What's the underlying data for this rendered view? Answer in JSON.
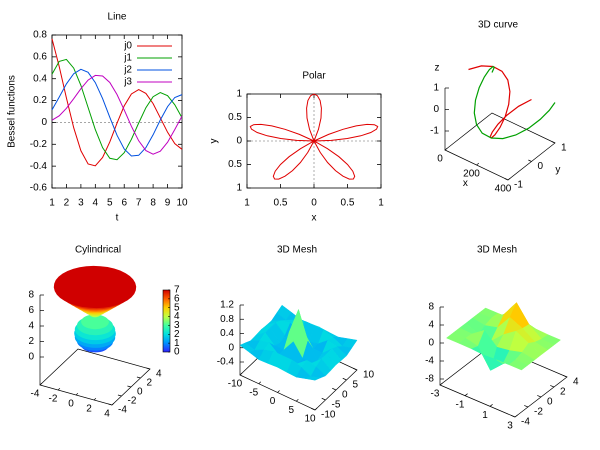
{
  "chart_data": [
    {
      "type": "line",
      "title": "Line",
      "xlabel": "t",
      "ylabel": "Bessel functions",
      "x": [
        1,
        1.5,
        2,
        2.5,
        3,
        3.5,
        4,
        4.5,
        5,
        5.5,
        6,
        6.5,
        7,
        7.5,
        8,
        8.5,
        9,
        9.5,
        10
      ],
      "series": [
        {
          "name": "j0",
          "color": "#e00000",
          "values": [
            0.765,
            0.512,
            0.224,
            -0.048,
            -0.26,
            -0.38,
            -0.397,
            -0.321,
            -0.178,
            -0.007,
            0.151,
            0.26,
            0.3,
            0.266,
            0.172,
            0.042,
            -0.09,
            -0.194,
            -0.246
          ]
        },
        {
          "name": "j1",
          "color": "#00a000",
          "values": [
            0.44,
            0.558,
            0.577,
            0.497,
            0.339,
            0.137,
            -0.066,
            -0.231,
            -0.328,
            -0.341,
            -0.277,
            -0.154,
            -0.005,
            0.135,
            0.235,
            0.273,
            0.245,
            0.161,
            0.043
          ]
        },
        {
          "name": "j2",
          "color": "#0050e0",
          "values": [
            0.115,
            0.232,
            0.353,
            0.446,
            0.486,
            0.459,
            0.364,
            0.218,
            0.047,
            -0.117,
            -0.243,
            -0.307,
            -0.301,
            -0.23,
            -0.113,
            0.022,
            0.145,
            0.228,
            0.255
          ]
        },
        {
          "name": "j3",
          "color": "#c000c0",
          "values": [
            0.02,
            0.061,
            0.129,
            0.217,
            0.309,
            0.387,
            0.43,
            0.425,
            0.365,
            0.256,
            0.115,
            -0.035,
            -0.168,
            -0.258,
            -0.291,
            -0.263,
            -0.181,
            -0.065,
            0.058
          ]
        }
      ],
      "xlim": [
        1,
        10
      ],
      "xticks": [
        1,
        2,
        3,
        4,
        5,
        6,
        7,
        8,
        9,
        10
      ],
      "ylim": [
        -0.6,
        0.8
      ],
      "yticks": [
        -0.6,
        -0.4,
        -0.2,
        0,
        0.2,
        0.4,
        0.6,
        0.8
      ],
      "zeroaxis": true,
      "legend": "top right"
    },
    {
      "type": "polar",
      "title": "Polar",
      "xlabel": "x",
      "ylabel": "y",
      "color": "#e00000",
      "theta": [
        0,
        3,
        6,
        9,
        12,
        15,
        18,
        21,
        24,
        27,
        30,
        33,
        36,
        39,
        42,
        45,
        48,
        51,
        54,
        57,
        60,
        63,
        66,
        69,
        72,
        75,
        78,
        81,
        84,
        87,
        90,
        93,
        96,
        99,
        102,
        105,
        108,
        111,
        114,
        117,
        120,
        123,
        126,
        129,
        132,
        135,
        138,
        141,
        144,
        147,
        150,
        153,
        156,
        159,
        162,
        165,
        168,
        171,
        174,
        177,
        180
      ],
      "r": [
        0,
        0.259,
        0.5,
        0.707,
        0.866,
        0.966,
        1,
        0.966,
        0.866,
        0.707,
        0.5,
        0.259,
        0,
        -0.259,
        -0.5,
        -0.707,
        -0.866,
        -0.966,
        -1,
        -0.966,
        -0.866,
        -0.707,
        -0.5,
        -0.259,
        0,
        0.259,
        0.5,
        0.707,
        0.866,
        0.966,
        1,
        0.966,
        0.866,
        0.707,
        0.5,
        0.259,
        0,
        -0.259,
        -0.5,
        -0.707,
        -0.866,
        -0.966,
        -1,
        -0.966,
        -0.866,
        -0.707,
        -0.5,
        -0.259,
        0,
        0.259,
        0.5,
        0.707,
        0.866,
        0.966,
        1,
        0.966,
        0.866,
        0.707,
        0.5,
        0.259,
        0
      ],
      "xlim": [
        -1,
        1
      ],
      "xticks": [
        {
          "value": -1,
          "label": "1"
        },
        {
          "value": -0.5,
          "label": "0.5"
        },
        0,
        0.5,
        1
      ],
      "ylim": [
        -1,
        1
      ],
      "yticks": [
        {
          "value": -1,
          "label": "1"
        },
        {
          "value": -0.5,
          "label": "0.5"
        },
        0,
        0.5,
        1
      ],
      "zeroaxis": true
    },
    {
      "type": "curve3d",
      "title": "3D curve",
      "xlabel": "x",
      "ylabel": "y",
      "zlabel": "z",
      "x": [
        0,
        25,
        50,
        75,
        100,
        125,
        150,
        175,
        200,
        225,
        250,
        275,
        300,
        325,
        350,
        375,
        400
      ],
      "series": [
        {
          "color": "#e00000",
          "y": [
            0,
            0.383,
            0.707,
            0.924,
            1,
            0.924,
            0.707,
            0.383,
            0,
            -0.383,
            -0.707,
            -0.924,
            -1,
            -0.924,
            -0.707,
            -0.383,
            0
          ],
          "values": [
            1,
            0.924,
            0.707,
            0.383,
            0,
            -0.383,
            -0.707,
            -0.924,
            -1,
            -0.924,
            -0.707,
            -0.383,
            0,
            0.383,
            0.707,
            0.924,
            1
          ]
        },
        {
          "color": "#00a000",
          "y": [
            1,
            0.924,
            0.707,
            0.383,
            0,
            -0.383,
            -0.707,
            -0.924,
            -1,
            -0.924,
            -0.707,
            -0.383,
            0,
            0.383,
            0.707,
            0.924,
            1
          ],
          "values": [
            0,
            0.383,
            0.707,
            0.924,
            1,
            0.924,
            0.707,
            0.383,
            0,
            -0.383,
            -0.707,
            -0.924,
            -1,
            -0.924,
            -0.707,
            -0.383,
            0
          ]
        }
      ],
      "xlim": [
        0,
        400
      ],
      "xticks": [
        0,
        200,
        400
      ],
      "ylim": [
        -1,
        1
      ],
      "yticks": [
        -1,
        0,
        1
      ],
      "zlim": [
        -1,
        1
      ],
      "zticks": [
        -1,
        0,
        1
      ]
    },
    {
      "type": "cylindrical",
      "title": "Cylindrical",
      "z": [
        0,
        0.5,
        1,
        1.5,
        2,
        2.5,
        3,
        3.5,
        4,
        4.5,
        5,
        5.5,
        6,
        6.5,
        7,
        7.5,
        8
      ],
      "r": [
        0,
        1.32,
        1.73,
        1.94,
        2,
        1.94,
        1.73,
        1.32,
        0,
        0.5,
        1,
        1.5,
        2,
        2.5,
        3,
        3.5,
        4
      ],
      "xlim": [
        -4,
        4
      ],
      "xticks": [
        -4,
        -2,
        0,
        2,
        4
      ],
      "ylim": [
        -4,
        4
      ],
      "yticks": [
        -4,
        -2,
        0,
        2,
        4
      ],
      "zlim": [
        0,
        8
      ],
      "zticks": [
        0,
        2,
        4,
        6,
        8
      ],
      "cblim": [
        0,
        7
      ],
      "cbticks": [
        0,
        1,
        2,
        3,
        4,
        5,
        6,
        7
      ],
      "palette": [
        "#3020ff",
        "#0090ff",
        "#00e0e0",
        "#40ffa0",
        "#c0ff40",
        "#ffd000",
        "#ff6000",
        "#d00000"
      ]
    },
    {
      "type": "mesh",
      "title": "3D Mesh",
      "x": [
        -10,
        -7.5,
        -5,
        -2.5,
        0,
        2.5,
        5,
        7.5,
        10
      ],
      "y": [
        -10,
        -7.5,
        -5,
        -2.5,
        0,
        2.5,
        5,
        7.5,
        10
      ],
      "z": [
        [
          0.071,
          -0.005,
          -0.087,
          -0.075,
          -0.054,
          -0.075,
          -0.087,
          -0.005,
          0.071
        ],
        [
          -0.005,
          -0.087,
          0.044,
          0.126,
          0.125,
          0.126,
          0.044,
          -0.087,
          -0.005
        ],
        [
          -0.087,
          0.044,
          0.1,
          -0.114,
          -0.192,
          -0.114,
          0.1,
          0.044,
          -0.087
        ],
        [
          -0.075,
          0.126,
          -0.114,
          -0.109,
          0.239,
          -0.109,
          -0.114,
          0.126,
          -0.075
        ],
        [
          -0.054,
          0.125,
          -0.192,
          0.239,
          1,
          0.239,
          -0.192,
          0.125,
          -0.054
        ],
        [
          -0.075,
          0.126,
          -0.114,
          -0.109,
          0.239,
          -0.109,
          -0.114,
          0.126,
          -0.075
        ],
        [
          -0.087,
          0.044,
          0.1,
          -0.114,
          -0.192,
          -0.114,
          0.1,
          0.044,
          -0.087
        ],
        [
          -0.005,
          -0.087,
          0.044,
          0.126,
          0.125,
          0.126,
          0.044,
          -0.087,
          -0.005
        ],
        [
          0.071,
          -0.005,
          -0.087,
          -0.075,
          -0.054,
          -0.075,
          -0.087,
          -0.005,
          0.071
        ]
      ],
      "xlim": [
        -10,
        10
      ],
      "xticks": [
        -10,
        -5,
        0,
        5,
        10
      ],
      "ylim": [
        -10,
        10
      ],
      "yticks": [
        -10,
        -5,
        0,
        5,
        10
      ],
      "zlim": [
        -0.4,
        1.2
      ],
      "zticks": [
        -0.4,
        0,
        0.4,
        0.8,
        1.2
      ],
      "palette": [
        "#3020ff",
        "#0090ff",
        "#00e0e0",
        "#40ffa0",
        "#c0ff40",
        "#ffd000",
        "#ff6000",
        "#d00000"
      ]
    },
    {
      "type": "mesh",
      "title": "3D Mesh",
      "x": [
        -3,
        -2,
        -1,
        0,
        1,
        2,
        3
      ],
      "y": [
        -3,
        -2,
        -1,
        0,
        1,
        2,
        3
      ],
      "z": [
        [
          0,
          0,
          -0.03,
          -0.24,
          -0.11,
          0,
          0
        ],
        [
          0,
          0.05,
          -0.59,
          -4.76,
          -2.1,
          -0.06,
          0
        ],
        [
          -0.01,
          -0.13,
          1.85,
          -0.72,
          -0.27,
          0.5,
          0.01
        ],
        [
          -0.03,
          -1.33,
          -1.65,
          0.98,
          2.94,
          1.41,
          0.03
        ],
        [
          -0.01,
          -0.48,
          0.23,
          3.69,
          2.43,
          0.58,
          0.01
        ],
        [
          0,
          0.08,
          2.09,
          5.86,
          2.21,
          0.13,
          0
        ],
        [
          0,
          0,
          0.11,
          0.3,
          0.11,
          0,
          0
        ]
      ],
      "xlim": [
        -3,
        3
      ],
      "xticks": [
        -3,
        -1,
        1,
        3
      ],
      "ylim": [
        -4,
        4
      ],
      "yticks": [
        -4,
        -2,
        0,
        2,
        4
      ],
      "zlim": [
        -8,
        8
      ],
      "zticks": [
        -8,
        -4,
        0,
        4,
        8
      ],
      "palette": [
        "#3020ff",
        "#0090ff",
        "#00e0e0",
        "#40ffa0",
        "#c0ff40",
        "#ffd000",
        "#ff6000",
        "#d00000"
      ]
    }
  ]
}
